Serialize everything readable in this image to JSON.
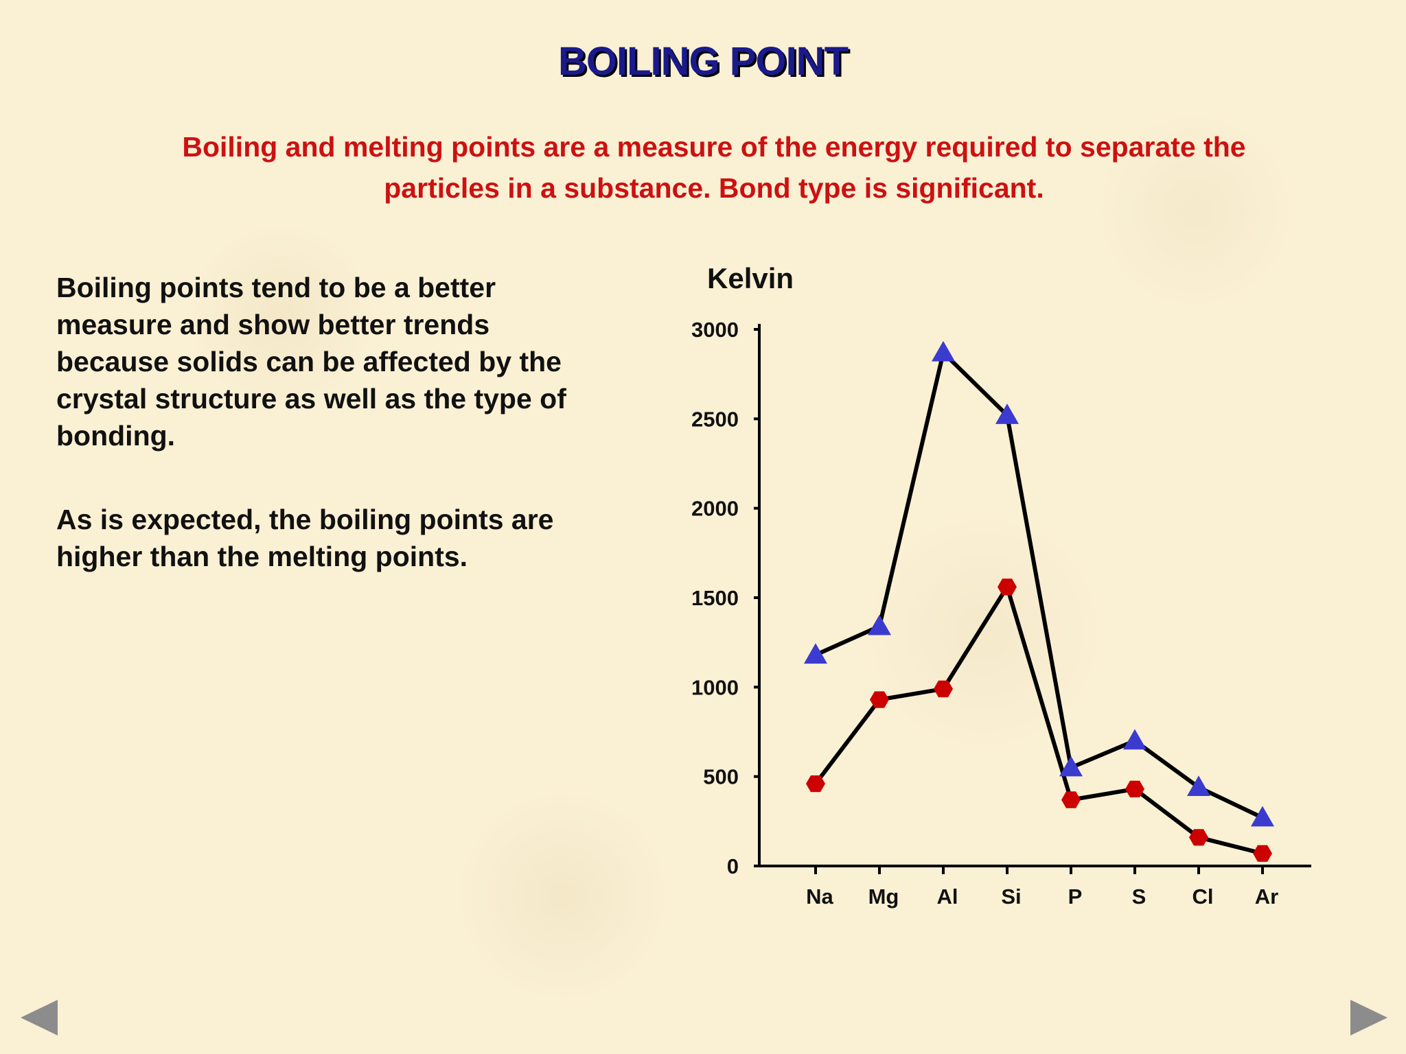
{
  "slide": {
    "title": "BOILING POINT",
    "subtitle": "Boiling and melting points are a measure of the energy required to separate the particles in a substance. Bond type is significant.",
    "paragraphs": [
      "Boiling points tend to be a better measure and show better trends because solids can be affected by the crystal structure as well as the type of bonding.",
      "As is expected, the boiling points are higher than the melting points."
    ]
  },
  "chart_data": {
    "type": "line",
    "ylabel": "Kelvin",
    "categories": [
      "Na",
      "Mg",
      "Al",
      "Si",
      "P",
      "S",
      "Cl",
      "Ar"
    ],
    "ylim": [
      0,
      3000
    ],
    "yticks": [
      0,
      500,
      1000,
      1500,
      2000,
      2500,
      3000
    ],
    "series": [
      {
        "values": [
          1180,
          1340,
          2870,
          2520,
          550,
          700,
          440,
          270
        ],
        "marker": "triangle",
        "color": "#3b3bd0"
      },
      {
        "values": [
          460,
          930,
          990,
          1560,
          370,
          430,
          160,
          70
        ],
        "marker": "hexagon",
        "color": "#cc0000"
      }
    ],
    "line_color": "#000000",
    "grid": false,
    "legend": "none"
  },
  "navigation": {
    "prev_icon": "triangle-left-icon",
    "next_icon": "triangle-right-icon",
    "color": "#8c8c8c"
  }
}
